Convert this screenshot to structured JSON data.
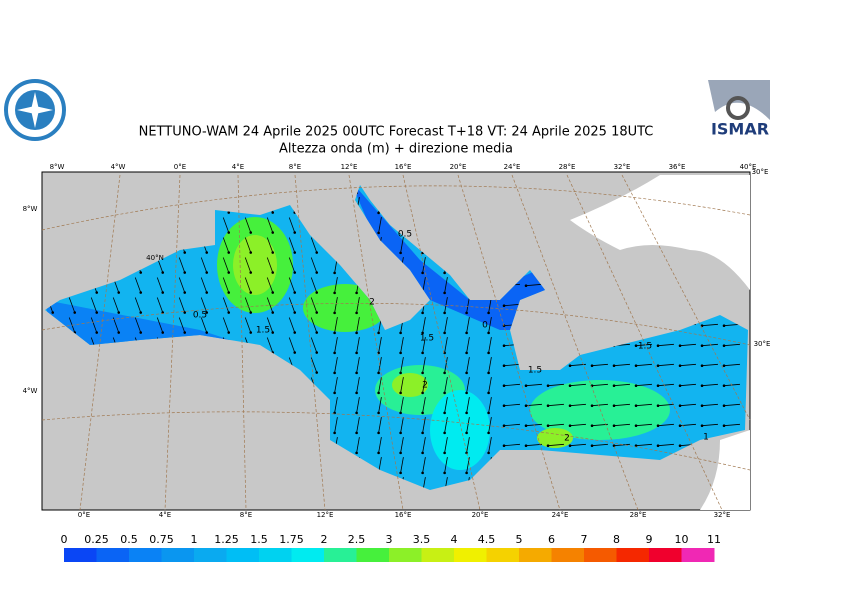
{
  "header": {
    "title": "NETTUNO-WAM  24   Aprile  2025 00UTC Forecast T+18 VT: 24   Aprile  2025 18UTC",
    "subtitle": "Altezza onda (m) + direzione media",
    "logo_text": "ISMAR"
  },
  "map": {
    "top_labels": [
      "8°W",
      "4°W",
      "0°E",
      "4°E",
      "8°E",
      "12°E",
      "16°E",
      "20°E",
      "24°E",
      "28°E",
      "32°E",
      "36°E",
      "40°E"
    ],
    "bottom_labels": [
      "0°E",
      "4°E",
      "8°E",
      "12°E",
      "16°E",
      "20°E",
      "24°E",
      "28°E",
      "32°E"
    ],
    "left_labels": [
      "8°W",
      "4°W"
    ],
    "inner_labels": [
      "40°N"
    ],
    "right_labels": [
      "30°E",
      "30°E"
    ],
    "contour_labels": [
      "0.5",
      "2",
      "0.5",
      "1.5",
      "1.5",
      "0",
      "1.5",
      "1.5",
      "2",
      "2",
      "1"
    ]
  },
  "legend": {
    "labels": [
      "0",
      "0.25",
      "0.5",
      "0.75",
      "1",
      "1.25",
      "1.5",
      "1.75",
      "2",
      "2.5",
      "3",
      "3.5",
      "4",
      "4.5",
      "5",
      "6",
      "7",
      "8",
      "9",
      "10",
      "11"
    ],
    "colors": [
      "#0a46f5",
      "#0a64f5",
      "#0a82f5",
      "#0a96f0",
      "#0aaaf0",
      "#00bef5",
      "#00d2f0",
      "#00ebf0",
      "#28f096",
      "#46f03c",
      "#8cf028",
      "#c8f014",
      "#f0f000",
      "#f5d200",
      "#f5aa00",
      "#f58200",
      "#f55a00",
      "#f52800",
      "#f0002d",
      "#f028b4"
    ]
  }
}
